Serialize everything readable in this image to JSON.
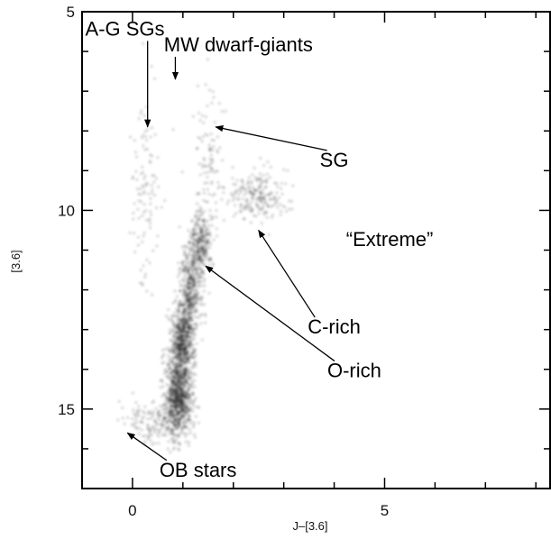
{
  "chart_data": {
    "type": "scatter",
    "title": "",
    "xlabel": "J–[3.6]",
    "ylabel": "[3.6]",
    "xlim": [
      -1.0,
      8.3
    ],
    "ylim": [
      17.0,
      5.0
    ],
    "y_inverted": true,
    "x_ticks": [
      {
        "value": 0,
        "label": "0"
      },
      {
        "value": 5,
        "label": "5"
      }
    ],
    "y_ticks": [
      {
        "value": 5,
        "label": "5"
      },
      {
        "value": 10,
        "label": "10"
      },
      {
        "value": 15,
        "label": "15"
      }
    ],
    "x_minor_step": 1,
    "y_minor_step": 1,
    "grid": false,
    "series": [
      {
        "color": "#000000",
        "display": "density",
        "components": [
          {
            "x": 0.9,
            "y": 14.7,
            "sx": 0.14,
            "sy": 0.5,
            "weight": 1.2
          },
          {
            "x": 1.0,
            "y": 13.3,
            "sx": 0.12,
            "sy": 0.5,
            "weight": 0.9
          },
          {
            "x": 1.15,
            "y": 12.0,
            "sx": 0.12,
            "sy": 0.5,
            "weight": 0.55
          },
          {
            "x": 1.35,
            "y": 10.8,
            "sx": 0.12,
            "sy": 0.4,
            "weight": 0.4
          },
          {
            "x": 2.5,
            "y": 9.6,
            "sx": 0.3,
            "sy": 0.3,
            "weight": 0.3
          },
          {
            "x": 0.4,
            "y": 15.3,
            "sx": 0.3,
            "sy": 0.3,
            "weight": 0.2
          },
          {
            "x": 0.3,
            "y": 9.5,
            "sx": 0.15,
            "sy": 1.2,
            "weight": 0.15
          },
          {
            "x": 1.5,
            "y": 9.0,
            "sx": 0.15,
            "sy": 1.0,
            "weight": 0.15
          }
        ]
      }
    ],
    "annotations": [
      {
        "text": "A-G SGs",
        "x": -0.15,
        "y": 5.6,
        "arrow_to": [
          0.3,
          7.9
        ]
      },
      {
        "text": "MW dwarf-giants",
        "x": 2.1,
        "y": 6.0,
        "arrow_to": [
          0.85,
          6.7
        ]
      },
      {
        "text": "SG",
        "x": 4.0,
        "y": 8.9,
        "arrow_to": [
          1.65,
          7.9
        ]
      },
      {
        "text": "“Extreme”",
        "x": 5.1,
        "y": 10.9,
        "arrow_to": null
      },
      {
        "text": "C-rich",
        "x": 4.0,
        "y": 13.1,
        "arrow_to": [
          2.5,
          10.5
        ]
      },
      {
        "text": "O-rich",
        "x": 4.4,
        "y": 14.2,
        "arrow_to": [
          1.45,
          11.4
        ]
      },
      {
        "text": "OB stars",
        "x": 1.3,
        "y": 16.7,
        "arrow_to": [
          -0.1,
          15.6
        ]
      }
    ]
  }
}
